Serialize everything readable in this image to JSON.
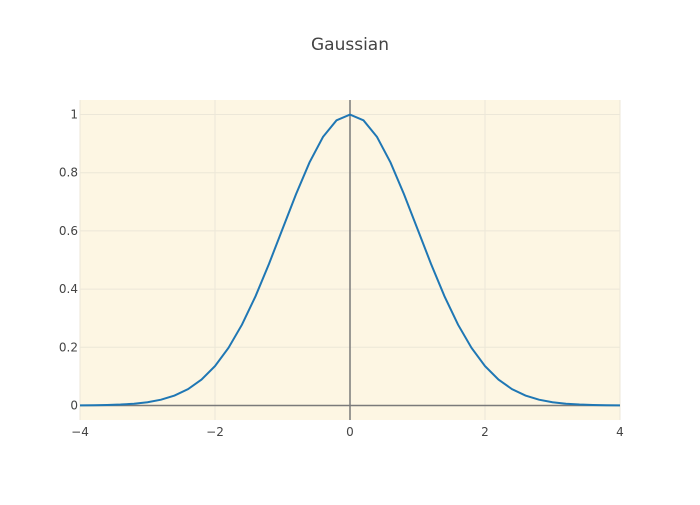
{
  "chart_data": {
    "type": "line",
    "title": "Gaussian",
    "xlabel": "",
    "ylabel": "",
    "xlim": [
      -4,
      4
    ],
    "ylim": [
      -0.05,
      1.05
    ],
    "x_ticks": [
      -4,
      -2,
      0,
      2,
      4
    ],
    "x_tick_labels": [
      "−4",
      "−2",
      "0",
      "2",
      "4"
    ],
    "y_ticks": [
      0,
      0.2,
      0.4,
      0.6,
      0.8,
      1
    ],
    "y_tick_labels": [
      "0",
      "0.2",
      "0.4",
      "0.6",
      "0.8",
      "1"
    ],
    "grid": true,
    "zero_lines": true,
    "legend": "none",
    "plot_background_color": "#fdf6e3",
    "grid_color": "#ece7d8",
    "zero_line_color": "#7a7a7a",
    "line_color": "#1f77b4",
    "series": [
      {
        "x": [
          -4,
          -3.8,
          -3.6,
          -3.4,
          -3.2,
          -3,
          -2.8,
          -2.6,
          -2.4,
          -2.2,
          -2,
          -1.8,
          -1.6,
          -1.4,
          -1.2,
          -1,
          -0.8,
          -0.6,
          -0.4,
          -0.2,
          0,
          0.2,
          0.4,
          0.6,
          0.8,
          1,
          1.2,
          1.4,
          1.6,
          1.8,
          2,
          2.2,
          2.4,
          2.6,
          2.8,
          3,
          3.2,
          3.4,
          3.6,
          3.8,
          4
        ],
        "y": [
          0.0003,
          0.0007,
          0.0015,
          0.0031,
          0.006,
          0.0111,
          0.0198,
          0.034,
          0.0561,
          0.0889,
          0.1353,
          0.1979,
          0.278,
          0.3753,
          0.4868,
          0.6065,
          0.7261,
          0.8353,
          0.9231,
          0.9802,
          1,
          0.9802,
          0.9231,
          0.8353,
          0.7261,
          0.6065,
          0.4868,
          0.3753,
          0.278,
          0.1979,
          0.1353,
          0.0889,
          0.0561,
          0.034,
          0.0198,
          0.0111,
          0.006,
          0.0031,
          0.0015,
          0.0007,
          0.0003
        ]
      }
    ]
  }
}
